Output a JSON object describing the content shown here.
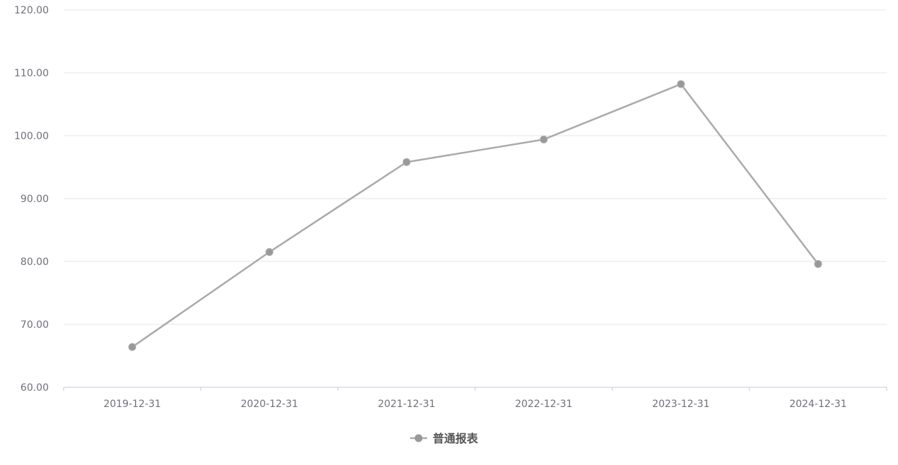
{
  "chart_data": {
    "type": "line",
    "categories": [
      "2019-12-31",
      "2020-12-31",
      "2021-12-31",
      "2022-12-31",
      "2023-12-31",
      "2024-12-31"
    ],
    "series": [
      {
        "name": "普通报表",
        "values": [
          66.4,
          81.5,
          95.8,
          99.4,
          108.2,
          79.6
        ],
        "color": "#aaaaaa"
      }
    ],
    "ylim": [
      60,
      120
    ],
    "yticks": [
      "60.00",
      "70.00",
      "80.00",
      "90.00",
      "100.00",
      "110.00",
      "120.00"
    ],
    "grid": true,
    "legend": "bottom-center"
  }
}
